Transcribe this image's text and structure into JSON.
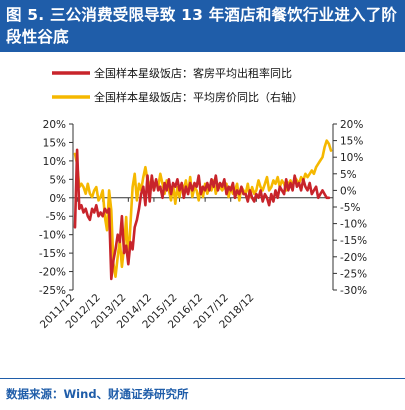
{
  "title": "图 5. 三公消费受限导致 13 年酒店和餐饮行业进入了阶段性谷底",
  "source": "数据来源：Wind、财通证券研究所",
  "colors": {
    "occupancy": "#c8242b",
    "price": "#f5b800",
    "header": "#1f5da9"
  },
  "chart_data": {
    "type": "line",
    "x_ticks": [
      "2011/12",
      "2012/12",
      "2013/12",
      "2014/12",
      "2015/12",
      "2016/12",
      "2017/12",
      "2018/12"
    ],
    "y_left": {
      "min": -25,
      "max": 20,
      "ticks": [
        "20%",
        "15%",
        "10%",
        "5%",
        "0%",
        "-5%",
        "-10%",
        "-15%",
        "-20%",
        "-25%"
      ]
    },
    "y_right": {
      "min": -30,
      "max": 20,
      "ticks": [
        "20%",
        "15%",
        "10%",
        "5%",
        "0%",
        "-5%",
        "-10%",
        "-15%",
        "-20%",
        "-25%",
        "-30%"
      ]
    },
    "grid": false,
    "legend_position": "top",
    "series": [
      {
        "name": "全国样本星级饭店：客房平均出租率同比",
        "axis": "left",
        "start": "2011-11",
        "values": [
          -8,
          13,
          -3,
          -2,
          -4,
          -3,
          -5,
          -6,
          -3,
          -4,
          -2,
          -5,
          -4,
          -5,
          -3,
          -4,
          -3,
          -22,
          -17,
          -14,
          -10,
          -12,
          -5,
          -15,
          -13,
          -18,
          -12,
          -14,
          -8,
          -6,
          -3,
          1,
          3,
          -2,
          6,
          -1,
          6,
          2,
          5,
          2,
          3,
          0,
          4,
          2,
          5,
          1,
          4,
          3,
          5,
          2,
          4,
          0,
          3,
          1,
          4,
          2,
          4,
          3,
          6,
          1,
          3,
          2,
          4,
          2,
          5,
          3,
          6,
          2,
          4,
          3,
          5,
          1,
          3,
          2,
          4,
          0,
          2,
          1,
          3,
          1,
          1,
          -1,
          2,
          0,
          -1,
          1,
          0,
          2,
          -1,
          1,
          0,
          -2,
          1,
          -1,
          2,
          0,
          3,
          2,
          1,
          5,
          2,
          4,
          2,
          6,
          3,
          4,
          2,
          5,
          3,
          2,
          4,
          1,
          2,
          3,
          0,
          1,
          2,
          1,
          0,
          0
        ]
      },
      {
        "name": "全国样本星级饭店：平均房价同比（右轴）",
        "axis": "right",
        "start": "2011-11",
        "values": [
          11,
          8,
          1,
          2,
          1,
          -1,
          2,
          -1,
          -2,
          0,
          1,
          -3,
          -2,
          0,
          -8,
          -12,
          0,
          -6,
          -22,
          -26,
          -20,
          -15,
          -23,
          -17,
          -8,
          -22,
          -10,
          1,
          5,
          -3,
          2,
          0,
          4,
          7,
          3,
          1,
          4,
          0,
          3,
          1,
          5,
          2,
          -1,
          3,
          0,
          -3,
          2,
          -4,
          1,
          -2,
          2,
          0,
          3,
          -1,
          4,
          -2,
          1,
          0,
          -3,
          1,
          -2,
          2,
          -1,
          1,
          0,
          3,
          -1,
          2,
          1,
          0,
          1,
          2,
          -2,
          1,
          -1,
          0,
          2,
          -3,
          1,
          0,
          -1,
          2,
          -2,
          1,
          -1,
          0,
          3,
          1,
          0,
          2,
          4,
          0,
          1,
          3,
          2,
          4,
          1,
          3,
          2,
          0,
          2,
          3,
          1,
          4,
          3,
          2,
          4,
          3,
          5,
          4,
          5,
          6,
          5,
          7,
          8,
          9,
          10,
          13,
          15,
          14,
          12
        ]
      }
    ]
  }
}
